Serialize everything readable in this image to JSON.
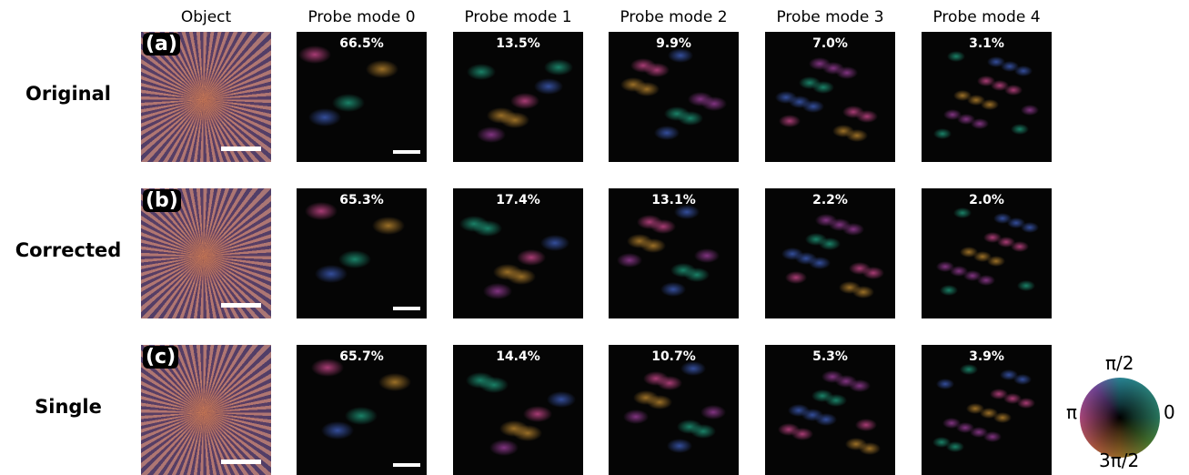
{
  "columns": [
    "Object",
    "Probe mode 0",
    "Probe mode 1",
    "Probe mode 2",
    "Probe mode 3",
    "Probe mode 4"
  ],
  "rows": [
    {
      "label": "Original",
      "panel": "(a)",
      "percentages": [
        "66.5%",
        "13.5%",
        "9.9%",
        "7.0%",
        "3.1%"
      ]
    },
    {
      "label": "Corrected",
      "panel": "(b)",
      "percentages": [
        "65.3%",
        "17.4%",
        "13.1%",
        "2.2%",
        "2.0%"
      ]
    },
    {
      "label": "Single",
      "panel": "(c)",
      "percentages": [
        "65.7%",
        "14.4%",
        "10.7%",
        "5.3%",
        "3.9%"
      ]
    }
  ],
  "colorwheel": {
    "top": "π/2",
    "right": "0",
    "left": "π",
    "bottom": "3π/2"
  }
}
